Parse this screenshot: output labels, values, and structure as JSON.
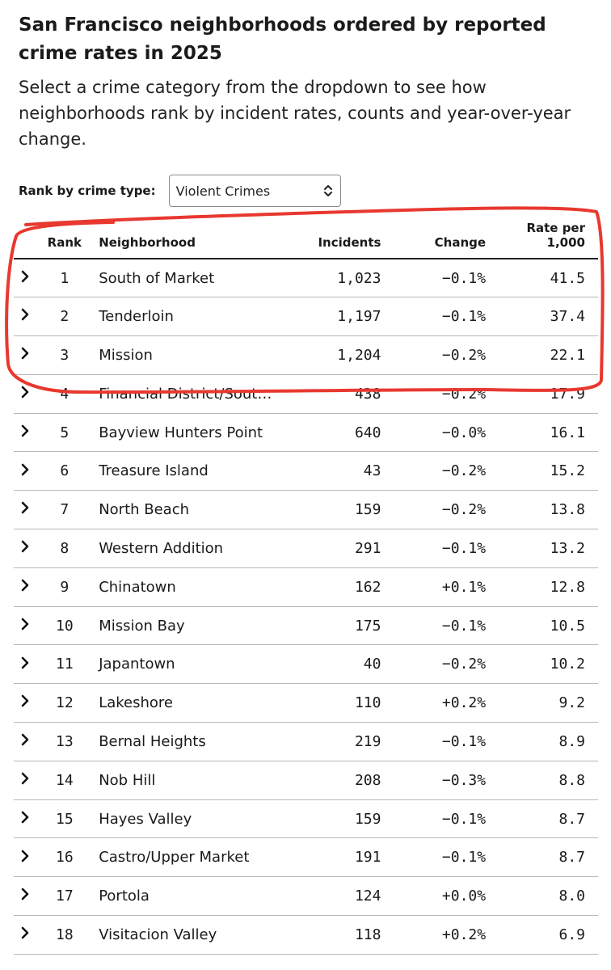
{
  "title": "San Francisco neighborhoods ordered by reported crime rates in 2025",
  "subtitle": "Select a crime category from the dropdown to see how neighborhoods rank by incident rates, counts and year-over-year change.",
  "control": {
    "label": "Rank by crime type:",
    "selected": "Violent Crimes"
  },
  "table": {
    "headers": {
      "rank": "Rank",
      "neighborhood": "Neighborhood",
      "incidents": "Incidents",
      "change": "Change",
      "rate_line1": "Rate per",
      "rate_line2": "1,000"
    },
    "rows": [
      {
        "rank": "1",
        "neighborhood": "South of Market",
        "incidents": "1,023",
        "change": "−0.1%",
        "rate": "41.5"
      },
      {
        "rank": "2",
        "neighborhood": "Tenderloin",
        "incidents": "1,197",
        "change": "−0.1%",
        "rate": "37.4"
      },
      {
        "rank": "3",
        "neighborhood": "Mission",
        "incidents": "1,204",
        "change": "−0.2%",
        "rate": "22.1"
      },
      {
        "rank": "4",
        "neighborhood": "Financial District/Sout…",
        "incidents": "438",
        "change": "−0.2%",
        "rate": "17.9"
      },
      {
        "rank": "5",
        "neighborhood": "Bayview Hunters Point",
        "incidents": "640",
        "change": "−0.0%",
        "rate": "16.1"
      },
      {
        "rank": "6",
        "neighborhood": "Treasure Island",
        "incidents": "43",
        "change": "−0.2%",
        "rate": "15.2"
      },
      {
        "rank": "7",
        "neighborhood": "North Beach",
        "incidents": "159",
        "change": "−0.2%",
        "rate": "13.8"
      },
      {
        "rank": "8",
        "neighborhood": "Western Addition",
        "incidents": "291",
        "change": "−0.1%",
        "rate": "13.2"
      },
      {
        "rank": "9",
        "neighborhood": "Chinatown",
        "incidents": "162",
        "change": "+0.1%",
        "rate": "12.8"
      },
      {
        "rank": "10",
        "neighborhood": "Mission Bay",
        "incidents": "175",
        "change": "−0.1%",
        "rate": "10.5"
      },
      {
        "rank": "11",
        "neighborhood": "Japantown",
        "incidents": "40",
        "change": "−0.2%",
        "rate": "10.2"
      },
      {
        "rank": "12",
        "neighborhood": "Lakeshore",
        "incidents": "110",
        "change": "+0.2%",
        "rate": "9.2"
      },
      {
        "rank": "13",
        "neighborhood": "Bernal Heights",
        "incidents": "219",
        "change": "−0.1%",
        "rate": "8.9"
      },
      {
        "rank": "14",
        "neighborhood": "Nob Hill",
        "incidents": "208",
        "change": "−0.3%",
        "rate": "8.8"
      },
      {
        "rank": "15",
        "neighborhood": "Hayes Valley",
        "incidents": "159",
        "change": "−0.1%",
        "rate": "8.7"
      },
      {
        "rank": "16",
        "neighborhood": "Castro/Upper Market",
        "incidents": "191",
        "change": "−0.1%",
        "rate": "8.7"
      },
      {
        "rank": "17",
        "neighborhood": "Portola",
        "incidents": "124",
        "change": "+0.0%",
        "rate": "8.0"
      },
      {
        "rank": "18",
        "neighborhood": "Visitacion Valley",
        "incidents": "118",
        "change": "+0.2%",
        "rate": "6.9"
      }
    ]
  },
  "icons": {
    "row_toggle": "chevron-right-icon",
    "select_arrow": "chevron-up-down-icon"
  },
  "colors": {
    "annotation": "#e8382f",
    "text": "#1a1a1a",
    "row_border": "#b8b8b8"
  }
}
